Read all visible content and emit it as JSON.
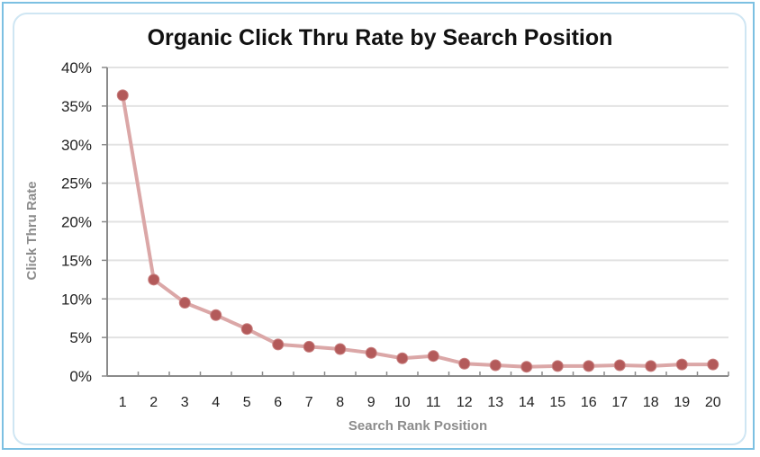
{
  "chart_data": {
    "type": "line",
    "title": "Organic Click Thru Rate by Search Position",
    "xlabel": "Search Rank Position",
    "ylabel": "Click Thru Rate",
    "categories": [
      "1",
      "2",
      "3",
      "4",
      "5",
      "6",
      "7",
      "8",
      "9",
      "10",
      "11",
      "12",
      "13",
      "14",
      "15",
      "16",
      "17",
      "18",
      "19",
      "20"
    ],
    "series": [
      {
        "name": "Click Thru Rate",
        "values": [
          36.4,
          12.5,
          9.5,
          7.9,
          6.1,
          4.1,
          3.8,
          3.5,
          3.0,
          2.3,
          2.6,
          1.6,
          1.4,
          1.2,
          1.3,
          1.3,
          1.4,
          1.3,
          1.5,
          1.5
        ]
      }
    ],
    "yticks": [
      "0%",
      "5%",
      "10%",
      "15%",
      "20%",
      "25%",
      "30%",
      "35%",
      "40%"
    ],
    "ylim": [
      0,
      40
    ],
    "grid": true,
    "legend": "none",
    "colors": {
      "marker": "#b35a5a",
      "line": "#dba7a7",
      "grid": "#e2e2e2",
      "axis": "#8a8a8a",
      "frame": "#7cc0e2",
      "panel_border": "#cfe6f3"
    }
  }
}
